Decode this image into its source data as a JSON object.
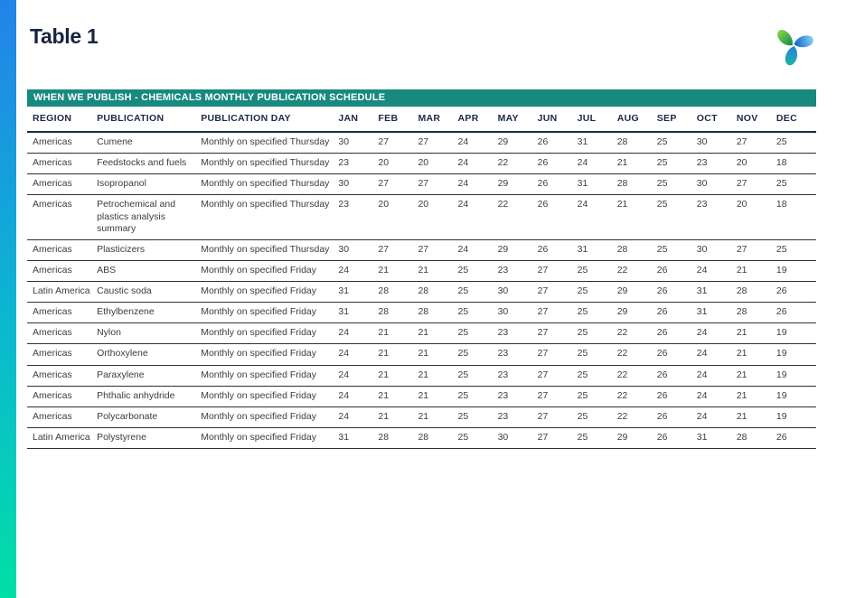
{
  "page": {
    "title": "Table 1"
  },
  "logo": {
    "name": "icis-pinwheel-logo"
  },
  "banner": {
    "title": "WHEN WE PUBLISH - CHEMICALS MONTHLY PUBLICATION SCHEDULE"
  },
  "colors": {
    "banner_teal": "#17897E",
    "heading_navy": "#17233F",
    "bar_top_blue": "#2383E8",
    "bar_bottom_green": "#02DFA6",
    "logo_green": "#1E9E58",
    "logo_blue": "#1260C4",
    "logo_teal": "#15B7A6"
  },
  "table": {
    "columns": [
      "REGION",
      "PUBLICATION",
      "PUBLICATION DAY",
      "JAN",
      "FEB",
      "MAR",
      "APR",
      "MAY",
      "JUN",
      "JUL",
      "AUG",
      "SEP",
      "OCT",
      "NOV",
      "DEC"
    ],
    "rows": [
      {
        "region": "Americas",
        "publication": "Cumene",
        "day": "Monthly on specified Thursday",
        "values": [
          30,
          27,
          27,
          24,
          29,
          26,
          31,
          28,
          25,
          30,
          27,
          25
        ]
      },
      {
        "region": "Americas",
        "publication": "Feedstocks and fuels",
        "day": "Monthly on specified Thursday",
        "values": [
          23,
          20,
          20,
          24,
          22,
          26,
          24,
          21,
          25,
          23,
          20,
          18
        ]
      },
      {
        "region": "Americas",
        "publication": "Isopropanol",
        "day": "Monthly on specified Thursday",
        "values": [
          30,
          27,
          27,
          24,
          29,
          26,
          31,
          28,
          25,
          30,
          27,
          25
        ]
      },
      {
        "region": "Americas",
        "publication": "Petrochemical and plastics analysis summary",
        "day": "Monthly on specified Thursday",
        "values": [
          23,
          20,
          20,
          24,
          22,
          26,
          24,
          21,
          25,
          23,
          20,
          18
        ]
      },
      {
        "region": "Americas",
        "publication": "Plasticizers",
        "day": "Monthly on specified Thursday",
        "values": [
          30,
          27,
          27,
          24,
          29,
          26,
          31,
          28,
          25,
          30,
          27,
          25
        ]
      },
      {
        "region": "Americas",
        "publication": "ABS",
        "day": "Monthly on specified Friday",
        "values": [
          24,
          21,
          21,
          25,
          23,
          27,
          25,
          22,
          26,
          24,
          21,
          19
        ]
      },
      {
        "region": "Latin America",
        "publication": "Caustic soda",
        "day": "Monthly on specified Friday",
        "values": [
          31,
          28,
          28,
          25,
          30,
          27,
          25,
          29,
          26,
          31,
          28,
          26
        ]
      },
      {
        "region": "Americas",
        "publication": "Ethylbenzene",
        "day": "Monthly on specified Friday",
        "values": [
          31,
          28,
          28,
          25,
          30,
          27,
          25,
          29,
          26,
          31,
          28,
          26
        ]
      },
      {
        "region": "Americas",
        "publication": "Nylon",
        "day": "Monthly on specified Friday",
        "values": [
          24,
          21,
          21,
          25,
          23,
          27,
          25,
          22,
          26,
          24,
          21,
          19
        ]
      },
      {
        "region": "Americas",
        "publication": "Orthoxylene",
        "day": "Monthly on specified Friday",
        "values": [
          24,
          21,
          21,
          25,
          23,
          27,
          25,
          22,
          26,
          24,
          21,
          19
        ]
      },
      {
        "region": "Americas",
        "publication": "Paraxylene",
        "day": "Monthly on specified Friday",
        "values": [
          24,
          21,
          21,
          25,
          23,
          27,
          25,
          22,
          26,
          24,
          21,
          19
        ]
      },
      {
        "region": "Americas",
        "publication": "Phthalic anhydride",
        "day": "Monthly on specified Friday",
        "values": [
          24,
          21,
          21,
          25,
          23,
          27,
          25,
          22,
          26,
          24,
          21,
          19
        ]
      },
      {
        "region": "Americas",
        "publication": "Polycarbonate",
        "day": "Monthly on specified Friday",
        "values": [
          24,
          21,
          21,
          25,
          23,
          27,
          25,
          22,
          26,
          24,
          21,
          19
        ]
      },
      {
        "region": "Latin America",
        "publication": "Polystyrene",
        "day": "Monthly on specified Friday",
        "values": [
          31,
          28,
          28,
          25,
          30,
          27,
          25,
          29,
          26,
          31,
          28,
          26
        ]
      }
    ]
  }
}
